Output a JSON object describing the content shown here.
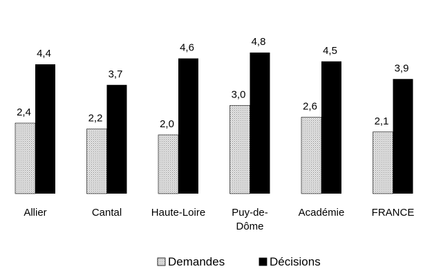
{
  "chart_data": {
    "type": "bar",
    "categories": [
      "Allier",
      "Cantal",
      "Haute-Loire",
      "Puy-de-Dôme",
      "Académie",
      "FRANCE"
    ],
    "series": [
      {
        "name": "Demandes",
        "values": [
          2.4,
          2.2,
          2.0,
          3.0,
          2.6,
          2.1
        ],
        "value_labels": [
          "2,4",
          "2,2",
          "2,0",
          "3,0",
          "2,6",
          "2,1"
        ],
        "fill": "#d4d4d4",
        "pattern": "dotted"
      },
      {
        "name": "Décisions",
        "values": [
          4.4,
          3.7,
          4.6,
          4.8,
          4.5,
          3.9
        ],
        "value_labels": [
          "4,4",
          "3,7",
          "4,6",
          "4,8",
          "4,5",
          "3,9"
        ],
        "fill": "#000000"
      }
    ],
    "ylim": [
      0,
      5.2
    ],
    "grid": false,
    "legend_position": "bottom-center",
    "title": "",
    "xlabel": "",
    "ylabel": ""
  }
}
